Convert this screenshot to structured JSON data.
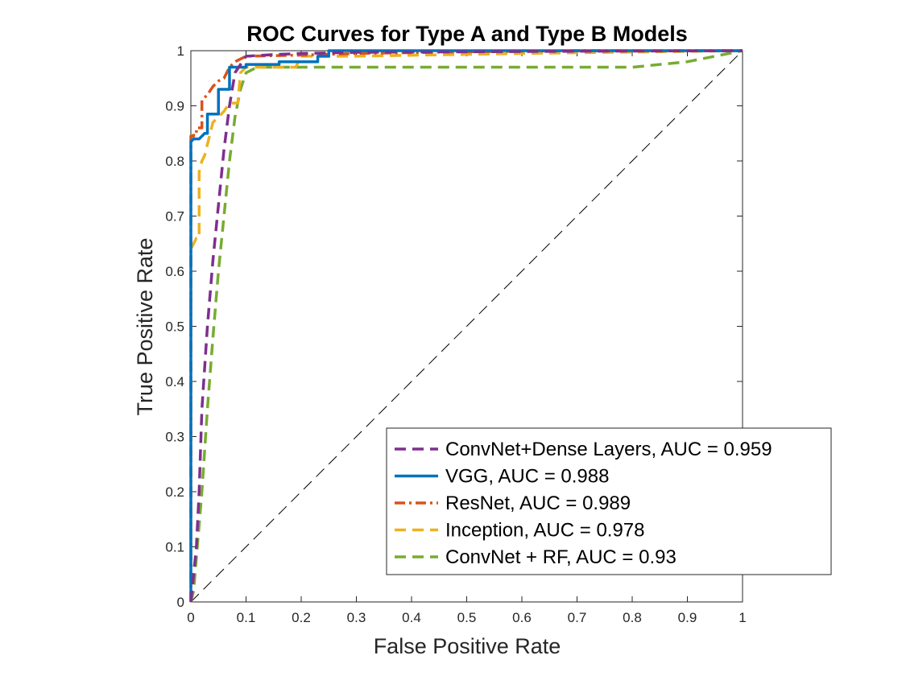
{
  "chart_data": {
    "type": "line",
    "title": "ROC Curves for Type A and Type B Models",
    "xlabel": "False Positive Rate",
    "ylabel": "True Positive Rate",
    "xlim": [
      0,
      1
    ],
    "ylim": [
      0,
      1
    ],
    "xticks": [
      0,
      0.1,
      0.2,
      0.3,
      0.4,
      0.5,
      0.6,
      0.7,
      0.8,
      0.9,
      1
    ],
    "xtick_labels": [
      "0",
      "0.1",
      "0.2",
      "0.3",
      "0.4",
      "0.5",
      "0.6",
      "0.7",
      "0.8",
      "0.9",
      "1"
    ],
    "yticks": [
      0,
      0.1,
      0.2,
      0.3,
      0.4,
      0.5,
      0.6,
      0.7,
      0.8,
      0.9,
      1
    ],
    "ytick_labels": [
      "0",
      "0.1",
      "0.2",
      "0.3",
      "0.4",
      "0.5",
      "0.6",
      "0.7",
      "0.8",
      "0.9",
      "1"
    ],
    "grid": false,
    "legend_position": "bottom-right",
    "series": [
      {
        "name": "ConvNet+Dense Layers, AUC = 0.959",
        "color": "#7E2F8E",
        "line_style": "dashed",
        "x": [
          0,
          0.005,
          0.01,
          0.015,
          0.02,
          0.03,
          0.04,
          0.05,
          0.06,
          0.07,
          0.08,
          0.1,
          0.15,
          0.2,
          0.3,
          0.5,
          0.7,
          1
        ],
        "y": [
          0,
          0.05,
          0.1,
          0.2,
          0.35,
          0.5,
          0.62,
          0.72,
          0.82,
          0.9,
          0.96,
          0.99,
          0.993,
          0.995,
          0.997,
          0.998,
          0.999,
          1
        ]
      },
      {
        "name": "VGG, AUC = 0.988",
        "color": "#0072BD",
        "line_style": "solid",
        "x": [
          0,
          0,
          0.005,
          0.015,
          0.025,
          0.03,
          0.03,
          0.04,
          0.05,
          0.05,
          0.07,
          0.07,
          0.1,
          0.1,
          0.16,
          0.16,
          0.23,
          0.23,
          0.25,
          0.25,
          1
        ],
        "y": [
          0,
          0.835,
          0.84,
          0.84,
          0.85,
          0.85,
          0.885,
          0.885,
          0.885,
          0.93,
          0.93,
          0.97,
          0.97,
          0.975,
          0.975,
          0.98,
          0.98,
          0.99,
          0.99,
          1,
          1
        ]
      },
      {
        "name": "ResNet, AUC = 0.989",
        "color": "#D95319",
        "line_style": "dashdot",
        "x": [
          0,
          0,
          0.005,
          0.005,
          0.01,
          0.01,
          0.02,
          0.02,
          0.03,
          0.04,
          0.05,
          0.06,
          0.07,
          0.08,
          0.1,
          0.2,
          0.3,
          0.5,
          0.7,
          1
        ],
        "y": [
          0,
          0.845,
          0.845,
          0.85,
          0.85,
          0.86,
          0.86,
          0.91,
          0.92,
          0.935,
          0.945,
          0.95,
          0.97,
          0.98,
          0.99,
          0.992,
          0.995,
          0.998,
          1,
          1
        ]
      },
      {
        "name": "Inception, AUC = 0.978",
        "color": "#EDB120",
        "line_style": "dashed",
        "x": [
          0,
          0,
          0.005,
          0.01,
          0.015,
          0.015,
          0.02,
          0.025,
          0.04,
          0.05,
          0.06,
          0.07,
          0.085,
          0.09,
          0.1,
          0.19,
          0.2,
          0.3,
          0.6,
          1
        ],
        "y": [
          0,
          0.64,
          0.65,
          0.66,
          0.66,
          0.78,
          0.8,
          0.81,
          0.87,
          0.88,
          0.89,
          0.905,
          0.905,
          0.96,
          0.97,
          0.97,
          0.99,
          0.99,
          0.995,
          1
        ]
      },
      {
        "name": "ConvNet + RF, AUC = 0.93",
        "color": "#77AC30",
        "line_style": "dashed",
        "x": [
          0,
          0.005,
          0.01,
          0.02,
          0.03,
          0.04,
          0.05,
          0.06,
          0.07,
          0.08,
          0.09,
          0.1,
          0.12,
          0.2,
          0.4,
          0.6,
          0.8,
          0.9,
          1
        ],
        "y": [
          0,
          0.02,
          0.08,
          0.2,
          0.35,
          0.48,
          0.6,
          0.7,
          0.8,
          0.88,
          0.93,
          0.96,
          0.97,
          0.97,
          0.97,
          0.97,
          0.97,
          0.98,
          1
        ]
      }
    ],
    "reference_line": {
      "x": [
        0,
        1
      ],
      "y": [
        0,
        1
      ],
      "color": "#000000",
      "line_style": "dashed"
    }
  }
}
